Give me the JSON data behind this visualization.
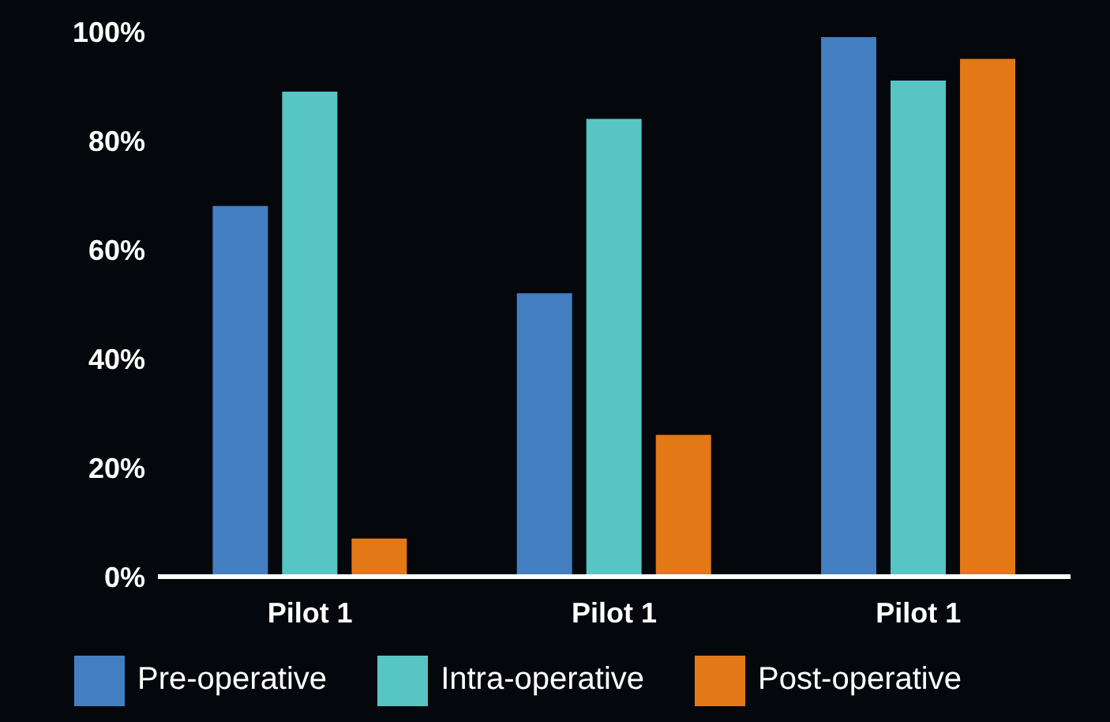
{
  "chart_data": {
    "type": "bar",
    "categories": [
      "Pilot 1",
      "Pilot 1",
      "Pilot 1"
    ],
    "series": [
      {
        "name": "Pre-operative",
        "color": "#437ec1",
        "values": [
          68,
          52,
          99
        ]
      },
      {
        "name": "Intra-operative",
        "color": "#57c5c4",
        "values": [
          89,
          84,
          91
        ]
      },
      {
        "name": "Post-operative",
        "color": "#e37817",
        "values": [
          7,
          26,
          95
        ]
      }
    ],
    "ylim": [
      0,
      100
    ],
    "yticks": [
      {
        "value": 0,
        "label": "0%"
      },
      {
        "value": 20,
        "label": "20%"
      },
      {
        "value": 40,
        "label": "40%"
      },
      {
        "value": 60,
        "label": "60%"
      },
      {
        "value": 80,
        "label": "80%"
      },
      {
        "value": 100,
        "label": "100%"
      }
    ],
    "grid": false,
    "legend": "bottom"
  }
}
